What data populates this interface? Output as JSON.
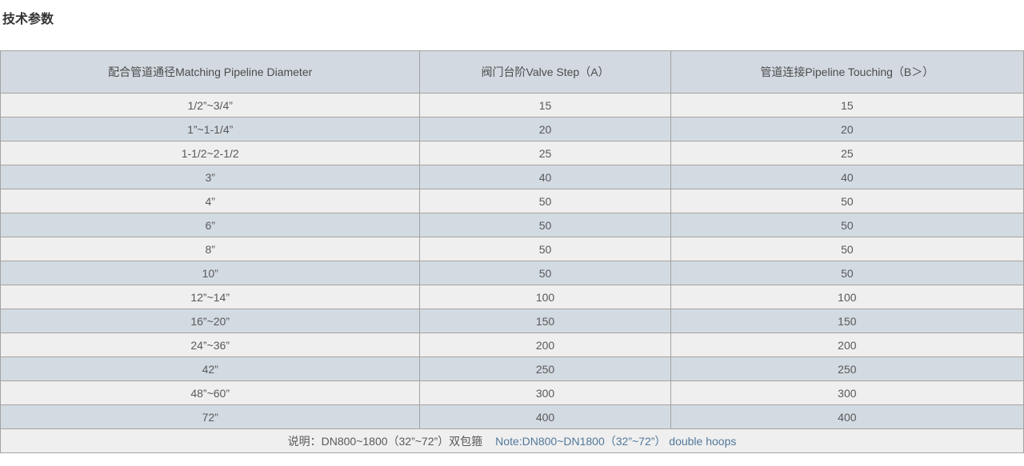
{
  "page": {
    "title": "技术参数"
  },
  "table": {
    "headers": [
      "配合管道通径Matching Pipeline Diameter",
      "阀门台阶Valve Step（A）",
      "管道连接Pipeline Touching（B＞）"
    ],
    "rows": [
      {
        "diameter": "1/2”~3/4”",
        "valve_step": "15",
        "pipeline_touching": "15"
      },
      {
        "diameter": "1”~1-1/4”",
        "valve_step": "20",
        "pipeline_touching": "20"
      },
      {
        "diameter": "1-1/2~2-1/2",
        "valve_step": "25",
        "pipeline_touching": "25"
      },
      {
        "diameter": "3”",
        "valve_step": "40",
        "pipeline_touching": "40"
      },
      {
        "diameter": "4”",
        "valve_step": "50",
        "pipeline_touching": "50"
      },
      {
        "diameter": "6”",
        "valve_step": "50",
        "pipeline_touching": "50"
      },
      {
        "diameter": "8”",
        "valve_step": "50",
        "pipeline_touching": "50"
      },
      {
        "diameter": "10”",
        "valve_step": "50",
        "pipeline_touching": "50"
      },
      {
        "diameter": "12”~14”",
        "valve_step": "100",
        "pipeline_touching": "100"
      },
      {
        "diameter": "16”~20”",
        "valve_step": "150",
        "pipeline_touching": "150"
      },
      {
        "diameter": "24”~36”",
        "valve_step": "200",
        "pipeline_touching": "200"
      },
      {
        "diameter": "42”",
        "valve_step": "250",
        "pipeline_touching": "250"
      },
      {
        "diameter": "48”~60”",
        "valve_step": "300",
        "pipeline_touching": "300"
      },
      {
        "diameter": "72”",
        "valve_step": "400",
        "pipeline_touching": "400"
      }
    ],
    "footer": {
      "note_cn": "说明：DN800~1800（32”~72”）双包箍",
      "note_en": "Note:DN800~DN1800（32”~72”） double hoops"
    }
  },
  "colors": {
    "header_bg": "#d2d9e0",
    "row_light_bg": "#efefef",
    "row_dark_bg": "#d3dbe2",
    "border": "#a3a3a3",
    "cell_text": "#595959",
    "title_text": "#333333",
    "note_en_text": "#51789b"
  }
}
